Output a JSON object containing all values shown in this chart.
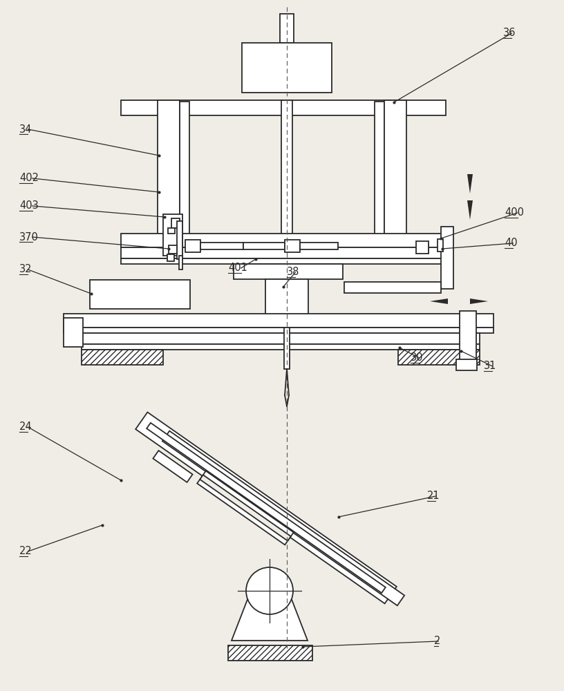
{
  "bg_color": "#f0ede6",
  "lc": "#2a2a2a",
  "lw": 1.3
}
